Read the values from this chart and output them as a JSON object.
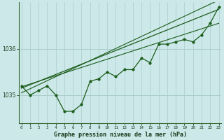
{
  "title": "Graphe pression niveau de la mer (hPa)",
  "x_labels": [
    "0",
    "1",
    "2",
    "3",
    "4",
    "5",
    "6",
    "7",
    "8",
    "9",
    "10",
    "11",
    "12",
    "13",
    "14",
    "15",
    "16",
    "17",
    "18",
    "19",
    "20",
    "21",
    "22",
    "23"
  ],
  "x_values": [
    0,
    1,
    2,
    3,
    4,
    5,
    6,
    7,
    8,
    9,
    10,
    11,
    12,
    13,
    14,
    15,
    16,
    17,
    18,
    19,
    20,
    21,
    22,
    23
  ],
  "pressure_data": [
    1035.2,
    1035.0,
    1035.1,
    1035.2,
    1035.0,
    1034.65,
    1034.65,
    1034.8,
    1035.3,
    1035.35,
    1035.5,
    1035.4,
    1035.55,
    1035.55,
    1035.8,
    1035.7,
    1036.1,
    1036.1,
    1036.15,
    1036.2,
    1036.15,
    1036.3,
    1036.55,
    1036.9
  ],
  "ylim": [
    1034.4,
    1037.0
  ],
  "yticks": [
    1035,
    1036
  ],
  "bg_color": "#cce8e8",
  "grid_color": "#aacccc",
  "line_color": "#1a5c1a",
  "axis_color": "#336633",
  "text_color": "#1a3a1a",
  "figsize": [
    3.2,
    2.0
  ],
  "dpi": 100,
  "trend_line1": [
    1035.15,
    1036.85
  ],
  "trend_line2": [
    1035.18,
    1036.55
  ],
  "trend_line3": [
    1035.05,
    1037.05
  ]
}
